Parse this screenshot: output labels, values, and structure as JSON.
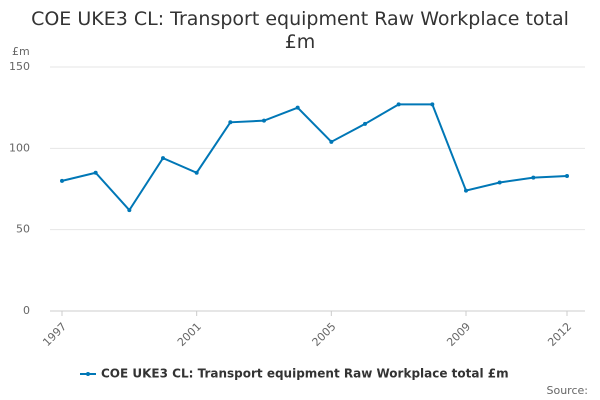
{
  "chart_data": {
    "type": "line",
    "title": "COE UKE3 CL: Transport equipment Raw Workplace total £m",
    "y_label": "£m",
    "source": "Source:",
    "x": [
      1997,
      1998,
      1999,
      2000,
      2001,
      2002,
      2003,
      2004,
      2005,
      2006,
      2007,
      2008,
      2009,
      2010,
      2011,
      2012
    ],
    "xlim": [
      1997,
      2012
    ],
    "xticks": [
      1997,
      2001,
      2005,
      2009,
      2012
    ],
    "ylim": [
      0,
      150
    ],
    "yticks": [
      0,
      50,
      100,
      150
    ],
    "grid": true,
    "series": [
      {
        "name": "COE UKE3 CL: Transport equipment Raw Workplace total £m",
        "color": "#0077b6",
        "values": [
          80,
          85,
          62,
          94,
          85,
          116,
          117,
          125,
          104,
          115,
          127,
          127,
          74,
          79,
          82,
          83
        ]
      }
    ]
  }
}
